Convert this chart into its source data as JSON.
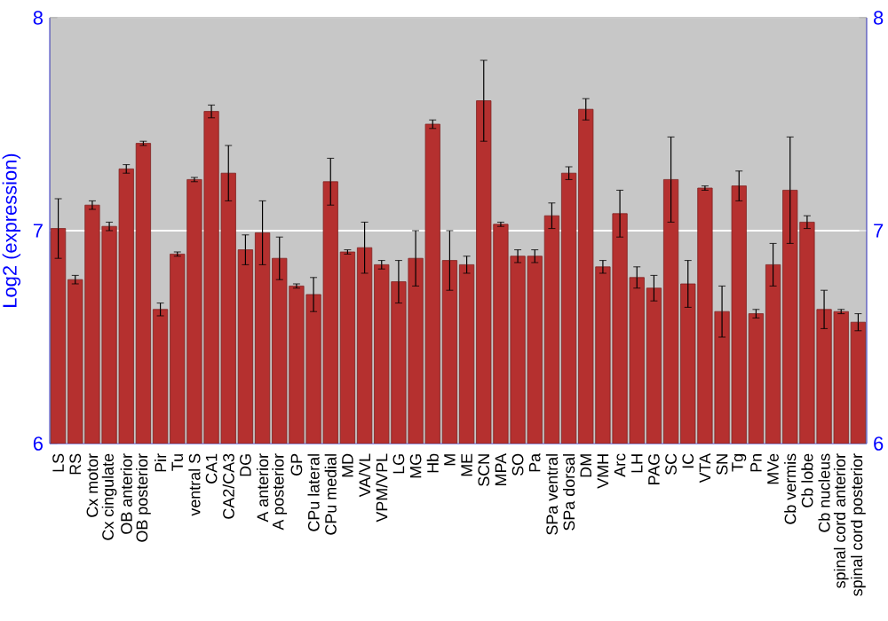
{
  "chart_data": {
    "type": "bar",
    "ylabel": "Log2 (expression)",
    "color": "#b5302f",
    "categories": [
      "LS",
      "RS",
      "Cx motor",
      "Cx cingulate",
      "OB anterior",
      "OB posterior",
      "Pir",
      "Tu",
      "ventral S",
      "CA1",
      "CA2/CA3",
      "DG",
      "A anterior",
      "A posterior",
      "GP",
      "CPu lateral",
      "CPu medial",
      "MD",
      "VA/VL",
      "VPM/VPL",
      "LG",
      "MG",
      "Hb",
      "M",
      "ME",
      "SCN",
      "MPA",
      "SO",
      "Pa",
      "SPa ventral",
      "SPa dorsal",
      "DM",
      "VMH",
      "Arc",
      "LH",
      "PAG",
      "SC",
      "IC",
      "VTA",
      "SN",
      "Tg",
      "Pn",
      "MVe",
      "Cb vermis",
      "Cb lobe",
      "Cb nucleus",
      "spinal cord anterior",
      "spinal cord posterior"
    ],
    "values": [
      7.01,
      6.77,
      7.12,
      7.02,
      7.29,
      7.41,
      6.63,
      6.89,
      7.24,
      7.56,
      7.27,
      6.91,
      6.99,
      6.87,
      6.74,
      6.7,
      7.23,
      6.9,
      6.92,
      6.84,
      6.76,
      6.87,
      7.5,
      6.86,
      6.84,
      7.61,
      7.03,
      6.88,
      6.88,
      7.07,
      7.27,
      7.57,
      6.83,
      7.08,
      6.78,
      6.73,
      7.24,
      6.75,
      7.2,
      6.62,
      7.21,
      6.61,
      6.84,
      7.19,
      7.04,
      6.63,
      6.62,
      6.57
    ],
    "errors": [
      0.14,
      0.02,
      0.02,
      0.02,
      0.02,
      0.01,
      0.03,
      0.01,
      0.01,
      0.03,
      0.13,
      0.07,
      0.15,
      0.1,
      0.01,
      0.08,
      0.11,
      0.01,
      0.12,
      0.02,
      0.1,
      0.13,
      0.02,
      0.14,
      0.04,
      0.19,
      0.01,
      0.03,
      0.03,
      0.06,
      0.03,
      0.05,
      0.03,
      0.11,
      0.05,
      0.06,
      0.2,
      0.11,
      0.01,
      0.12,
      0.07,
      0.02,
      0.1,
      0.25,
      0.03,
      0.09,
      0.01,
      0.04
    ],
    "ylim": [
      6,
      8
    ],
    "yticks": [
      6,
      7,
      8
    ],
    "y2lim": [
      6,
      8
    ],
    "y2ticks": [
      6,
      7,
      8
    ],
    "grid": "y"
  }
}
